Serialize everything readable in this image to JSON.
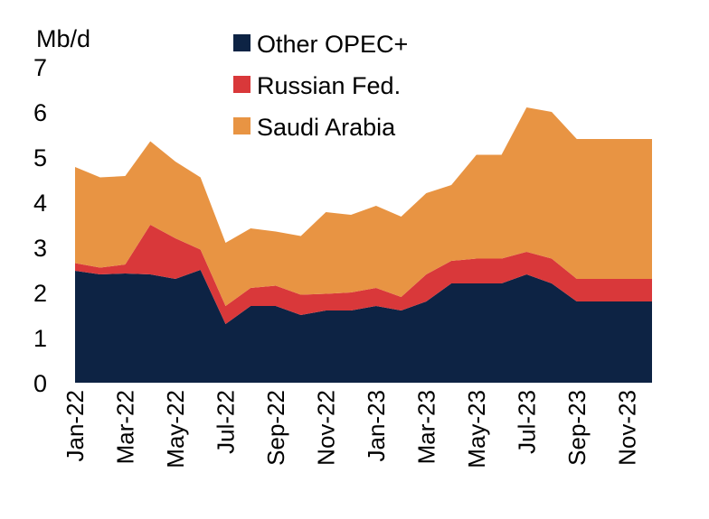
{
  "chart_data": {
    "type": "area",
    "stacked": true,
    "title": "",
    "ylabel": "Mb/d",
    "xlabel": "",
    "ylim": [
      0,
      7
    ],
    "yticks": [
      0,
      1,
      2,
      3,
      4,
      5,
      6,
      7
    ],
    "x": [
      "Jan-22",
      "Feb-22",
      "Mar-22",
      "Apr-22",
      "May-22",
      "Jun-22",
      "Jul-22",
      "Aug-22",
      "Sep-22",
      "Oct-22",
      "Nov-22",
      "Dec-22",
      "Jan-23",
      "Feb-23",
      "Mar-23",
      "Apr-23",
      "May-23",
      "Jun-23",
      "Jul-23",
      "Aug-23",
      "Sep-23",
      "Oct-23",
      "Nov-23",
      "Dec-23"
    ],
    "xtick_labels": [
      "Jan-22",
      "Mar-22",
      "May-22",
      "Jul-22",
      "Sep-22",
      "Nov-22",
      "Jan-23",
      "Mar-23",
      "May-23",
      "Jul-23",
      "Sep-23",
      "Nov-23"
    ],
    "legend_position": "top-center",
    "grid": false,
    "series": [
      {
        "name": "Other OPEC+",
        "color": "#0d2344",
        "values": [
          2.48,
          2.4,
          2.42,
          2.4,
          2.3,
          2.5,
          1.3,
          1.7,
          1.7,
          1.5,
          1.6,
          1.6,
          1.7,
          1.6,
          1.8,
          2.2,
          2.2,
          2.2,
          2.4,
          2.2,
          1.8,
          1.8,
          1.8,
          1.8
        ]
      },
      {
        "name": "Russian Fed.",
        "color": "#d9383a",
        "values": [
          0.17,
          0.15,
          0.2,
          1.1,
          0.9,
          0.45,
          0.4,
          0.4,
          0.45,
          0.45,
          0.37,
          0.4,
          0.4,
          0.3,
          0.6,
          0.5,
          0.55,
          0.55,
          0.5,
          0.55,
          0.5,
          0.5,
          0.5,
          0.5
        ]
      },
      {
        "name": "Saudi Arabia",
        "color": "#e89443",
        "values": [
          2.13,
          2.0,
          1.96,
          1.85,
          1.7,
          1.6,
          1.4,
          1.32,
          1.2,
          1.3,
          1.81,
          1.72,
          1.82,
          1.78,
          1.8,
          1.68,
          2.3,
          2.3,
          3.2,
          3.25,
          3.1,
          3.1,
          3.1,
          3.1
        ]
      }
    ]
  }
}
